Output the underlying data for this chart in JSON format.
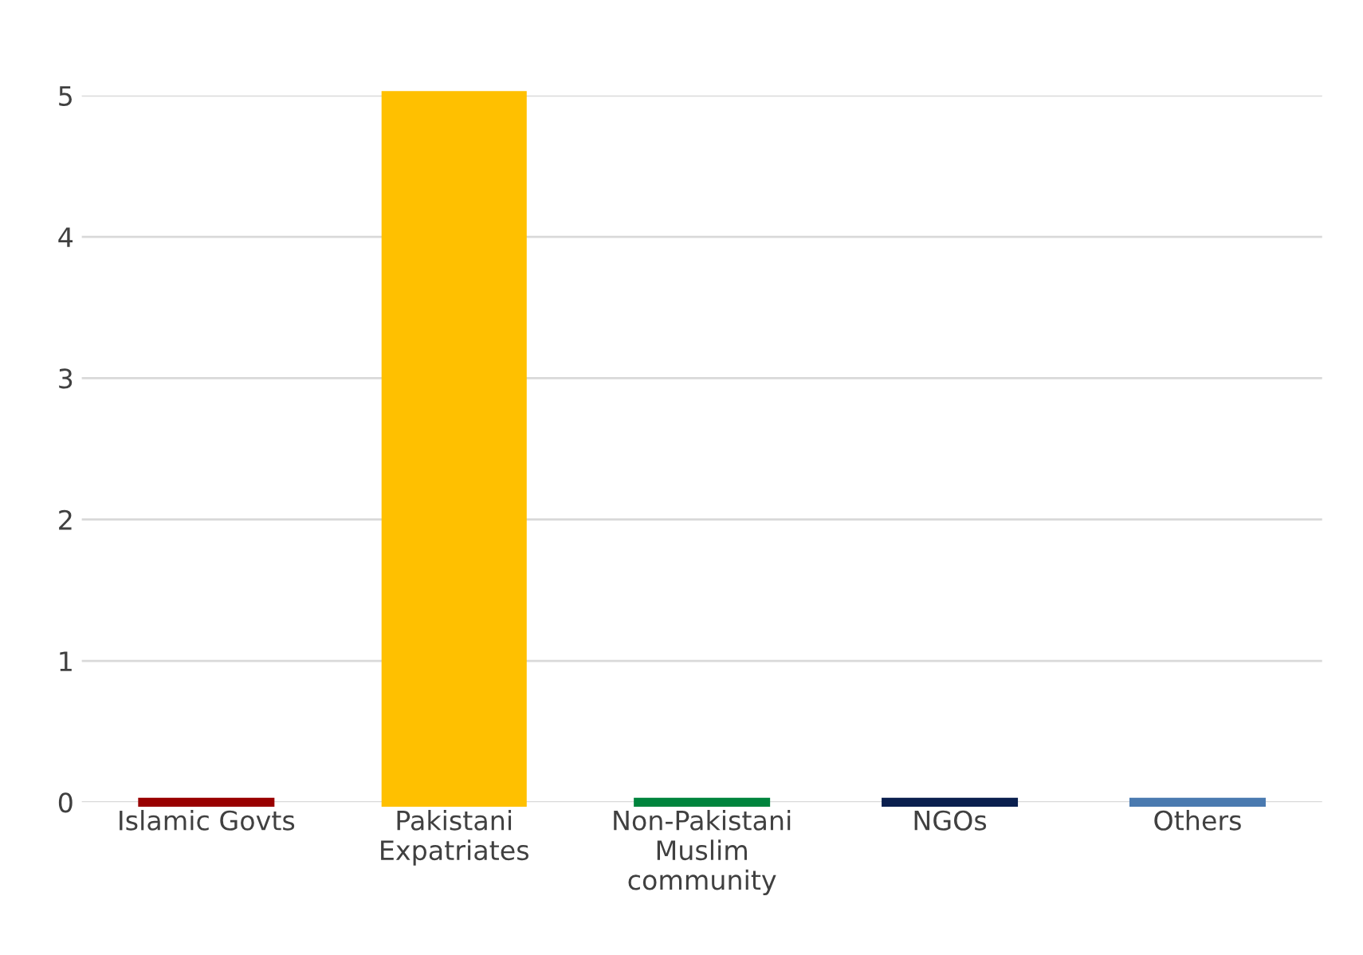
{
  "chart_data": {
    "type": "bar",
    "categories": [
      "Islamic Govts",
      "Pakistani\nExpatriates",
      "Non-Pakistani\nMuslim\ncommunity",
      "NGOs",
      "Others"
    ],
    "values": [
      0,
      5,
      0,
      0,
      0
    ],
    "colors": [
      "#990000",
      "#ffc000",
      "#00843d",
      "#0a1f4e",
      "#4a7ab0"
    ],
    "ylim": [
      0,
      5
    ],
    "yticks": [
      0,
      1,
      2,
      3,
      4,
      5
    ],
    "grid": "y"
  }
}
